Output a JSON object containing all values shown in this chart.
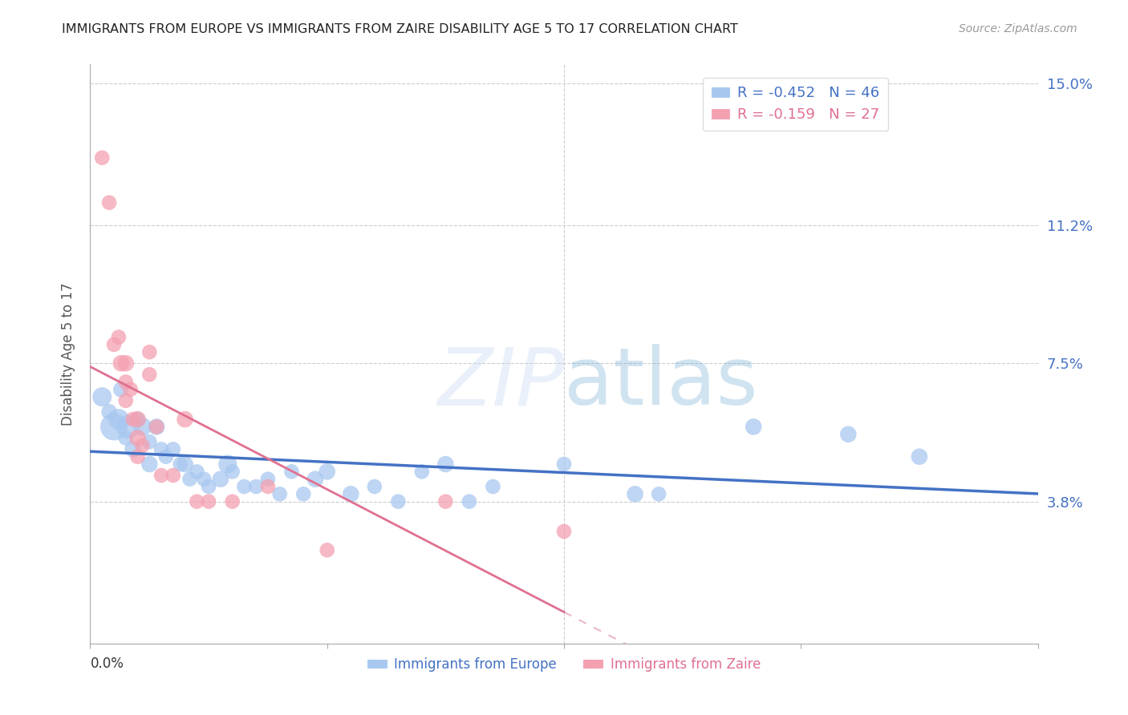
{
  "title": "IMMIGRANTS FROM EUROPE VS IMMIGRANTS FROM ZAIRE DISABILITY AGE 5 TO 17 CORRELATION CHART",
  "source": "Source: ZipAtlas.com",
  "ylabel": "Disability Age 5 to 17",
  "yticks": [
    0.0,
    0.038,
    0.075,
    0.112,
    0.15
  ],
  "ytick_labels": [
    "",
    "3.8%",
    "7.5%",
    "11.2%",
    "15.0%"
  ],
  "xlim": [
    0.0,
    0.4
  ],
  "ylim": [
    0.0,
    0.155
  ],
  "legend_europe": "R = -0.452   N = 46",
  "legend_zaire": "R = -0.159   N = 27",
  "europe_color": "#a8c8f0",
  "zaire_color": "#f4a0b0",
  "europe_line_color": "#4472c4",
  "zaire_line_color": "#e07090",
  "zaire_dash_color": "#e8b8c8",
  "watermark": "ZIPatlas",
  "europe_points": [
    [
      0.005,
      0.066
    ],
    [
      0.008,
      0.062
    ],
    [
      0.01,
      0.058
    ],
    [
      0.012,
      0.06
    ],
    [
      0.013,
      0.068
    ],
    [
      0.015,
      0.055
    ],
    [
      0.016,
      0.058
    ],
    [
      0.018,
      0.052
    ],
    [
      0.02,
      0.06
    ],
    [
      0.022,
      0.058
    ],
    [
      0.025,
      0.054
    ],
    [
      0.025,
      0.048
    ],
    [
      0.028,
      0.058
    ],
    [
      0.03,
      0.052
    ],
    [
      0.032,
      0.05
    ],
    [
      0.035,
      0.052
    ],
    [
      0.038,
      0.048
    ],
    [
      0.04,
      0.048
    ],
    [
      0.042,
      0.044
    ],
    [
      0.045,
      0.046
    ],
    [
      0.048,
      0.044
    ],
    [
      0.05,
      0.042
    ],
    [
      0.055,
      0.044
    ],
    [
      0.058,
      0.048
    ],
    [
      0.06,
      0.046
    ],
    [
      0.065,
      0.042
    ],
    [
      0.07,
      0.042
    ],
    [
      0.075,
      0.044
    ],
    [
      0.08,
      0.04
    ],
    [
      0.085,
      0.046
    ],
    [
      0.09,
      0.04
    ],
    [
      0.095,
      0.044
    ],
    [
      0.1,
      0.046
    ],
    [
      0.11,
      0.04
    ],
    [
      0.12,
      0.042
    ],
    [
      0.13,
      0.038
    ],
    [
      0.14,
      0.046
    ],
    [
      0.15,
      0.048
    ],
    [
      0.16,
      0.038
    ],
    [
      0.17,
      0.042
    ],
    [
      0.2,
      0.048
    ],
    [
      0.23,
      0.04
    ],
    [
      0.24,
      0.04
    ],
    [
      0.28,
      0.058
    ],
    [
      0.32,
      0.056
    ],
    [
      0.35,
      0.05
    ]
  ],
  "europe_sizes": [
    300,
    200,
    600,
    350,
    200,
    180,
    450,
    220,
    180,
    280,
    180,
    220,
    220,
    180,
    180,
    180,
    180,
    220,
    180,
    180,
    180,
    180,
    220,
    280,
    180,
    180,
    180,
    180,
    180,
    180,
    180,
    220,
    220,
    220,
    180,
    180,
    180,
    220,
    180,
    180,
    180,
    220,
    180,
    220,
    220,
    220
  ],
  "zaire_points": [
    [
      0.005,
      0.13
    ],
    [
      0.008,
      0.118
    ],
    [
      0.01,
      0.08
    ],
    [
      0.012,
      0.082
    ],
    [
      0.013,
      0.075
    ],
    [
      0.015,
      0.075
    ],
    [
      0.015,
      0.07
    ],
    [
      0.015,
      0.065
    ],
    [
      0.017,
      0.068
    ],
    [
      0.018,
      0.06
    ],
    [
      0.02,
      0.06
    ],
    [
      0.02,
      0.055
    ],
    [
      0.02,
      0.05
    ],
    [
      0.022,
      0.053
    ],
    [
      0.025,
      0.078
    ],
    [
      0.025,
      0.072
    ],
    [
      0.028,
      0.058
    ],
    [
      0.03,
      0.045
    ],
    [
      0.035,
      0.045
    ],
    [
      0.04,
      0.06
    ],
    [
      0.045,
      0.038
    ],
    [
      0.05,
      0.038
    ],
    [
      0.06,
      0.038
    ],
    [
      0.075,
      0.042
    ],
    [
      0.1,
      0.025
    ],
    [
      0.15,
      0.038
    ],
    [
      0.2,
      0.03
    ]
  ],
  "zaire_sizes": [
    180,
    180,
    180,
    180,
    220,
    220,
    180,
    180,
    180,
    180,
    220,
    220,
    180,
    180,
    180,
    180,
    180,
    180,
    180,
    220,
    180,
    180,
    180,
    180,
    180,
    180,
    180
  ]
}
